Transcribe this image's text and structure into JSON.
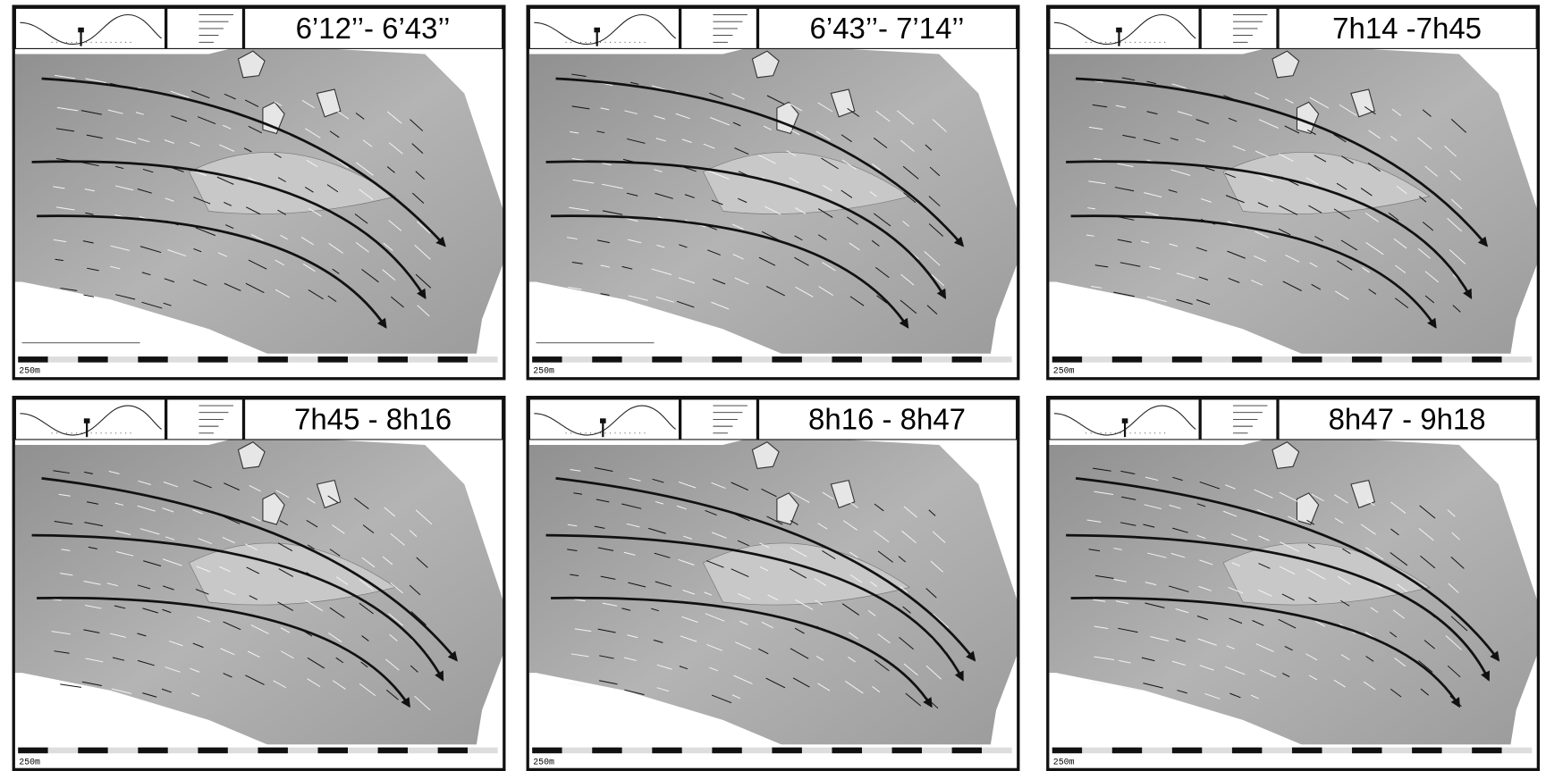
{
  "panels": [
    {
      "title": "6’12’’- 6’43’’",
      "scale_label": "250m"
    },
    {
      "title": "6’43’’- 7’14’’",
      "scale_label": "250m"
    },
    {
      "title": "7h14 -7h45",
      "scale_label": "250m"
    },
    {
      "title": "7h45 - 8h16",
      "scale_label": "250m"
    },
    {
      "title": "8h16 - 8h47",
      "scale_label": "250m"
    },
    {
      "title": "8h47 - 9h18",
      "scale_label": "250m"
    }
  ]
}
